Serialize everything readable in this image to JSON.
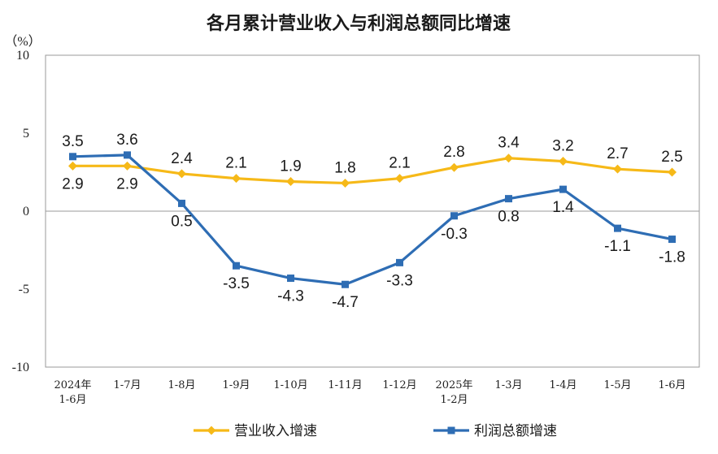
{
  "chart_data": {
    "type": "line",
    "title": "各月累计营业收入与利润总额同比增速",
    "unit_label": "（%）",
    "ylim": [
      -10,
      10
    ],
    "yticks": [
      10,
      5,
      0,
      -5,
      -10
    ],
    "grid": false,
    "legend_position": "bottom",
    "categories": [
      [
        "2024年",
        "1-6月"
      ],
      [
        "1-7月"
      ],
      [
        "1-8月"
      ],
      [
        "1-9月"
      ],
      [
        "1-10月"
      ],
      [
        "1-11月"
      ],
      [
        "1-12月"
      ],
      [
        "2025年",
        "1-2月"
      ],
      [
        "1-3月"
      ],
      [
        "1-4月"
      ],
      [
        "1-5月"
      ],
      [
        "1-6月"
      ]
    ],
    "series": [
      {
        "name": "营业收入增速",
        "color": "#F6B918",
        "marker": "diamond",
        "values": [
          2.9,
          2.9,
          2.4,
          2.1,
          1.9,
          1.8,
          2.1,
          2.8,
          3.4,
          3.2,
          2.7,
          2.5
        ],
        "labels": [
          "2.9",
          "2.9",
          "2.4",
          "2.1",
          "1.9",
          "1.8",
          "2.1",
          "2.8",
          "3.4",
          "3.2",
          "2.7",
          "2.5"
        ]
      },
      {
        "name": "利润总额增速",
        "color": "#2E6DB4",
        "marker": "square",
        "values": [
          3.5,
          3.6,
          0.5,
          -3.5,
          -4.3,
          -4.7,
          -3.3,
          -0.3,
          0.8,
          1.4,
          -1.1,
          -1.8
        ],
        "labels": [
          "3.5",
          "3.6",
          "0.5",
          "-3.5",
          "-4.3",
          "-4.7",
          "-3.3",
          "-0.3",
          "0.8",
          "1.4",
          "-1.1",
          "-1.8"
        ]
      }
    ]
  }
}
